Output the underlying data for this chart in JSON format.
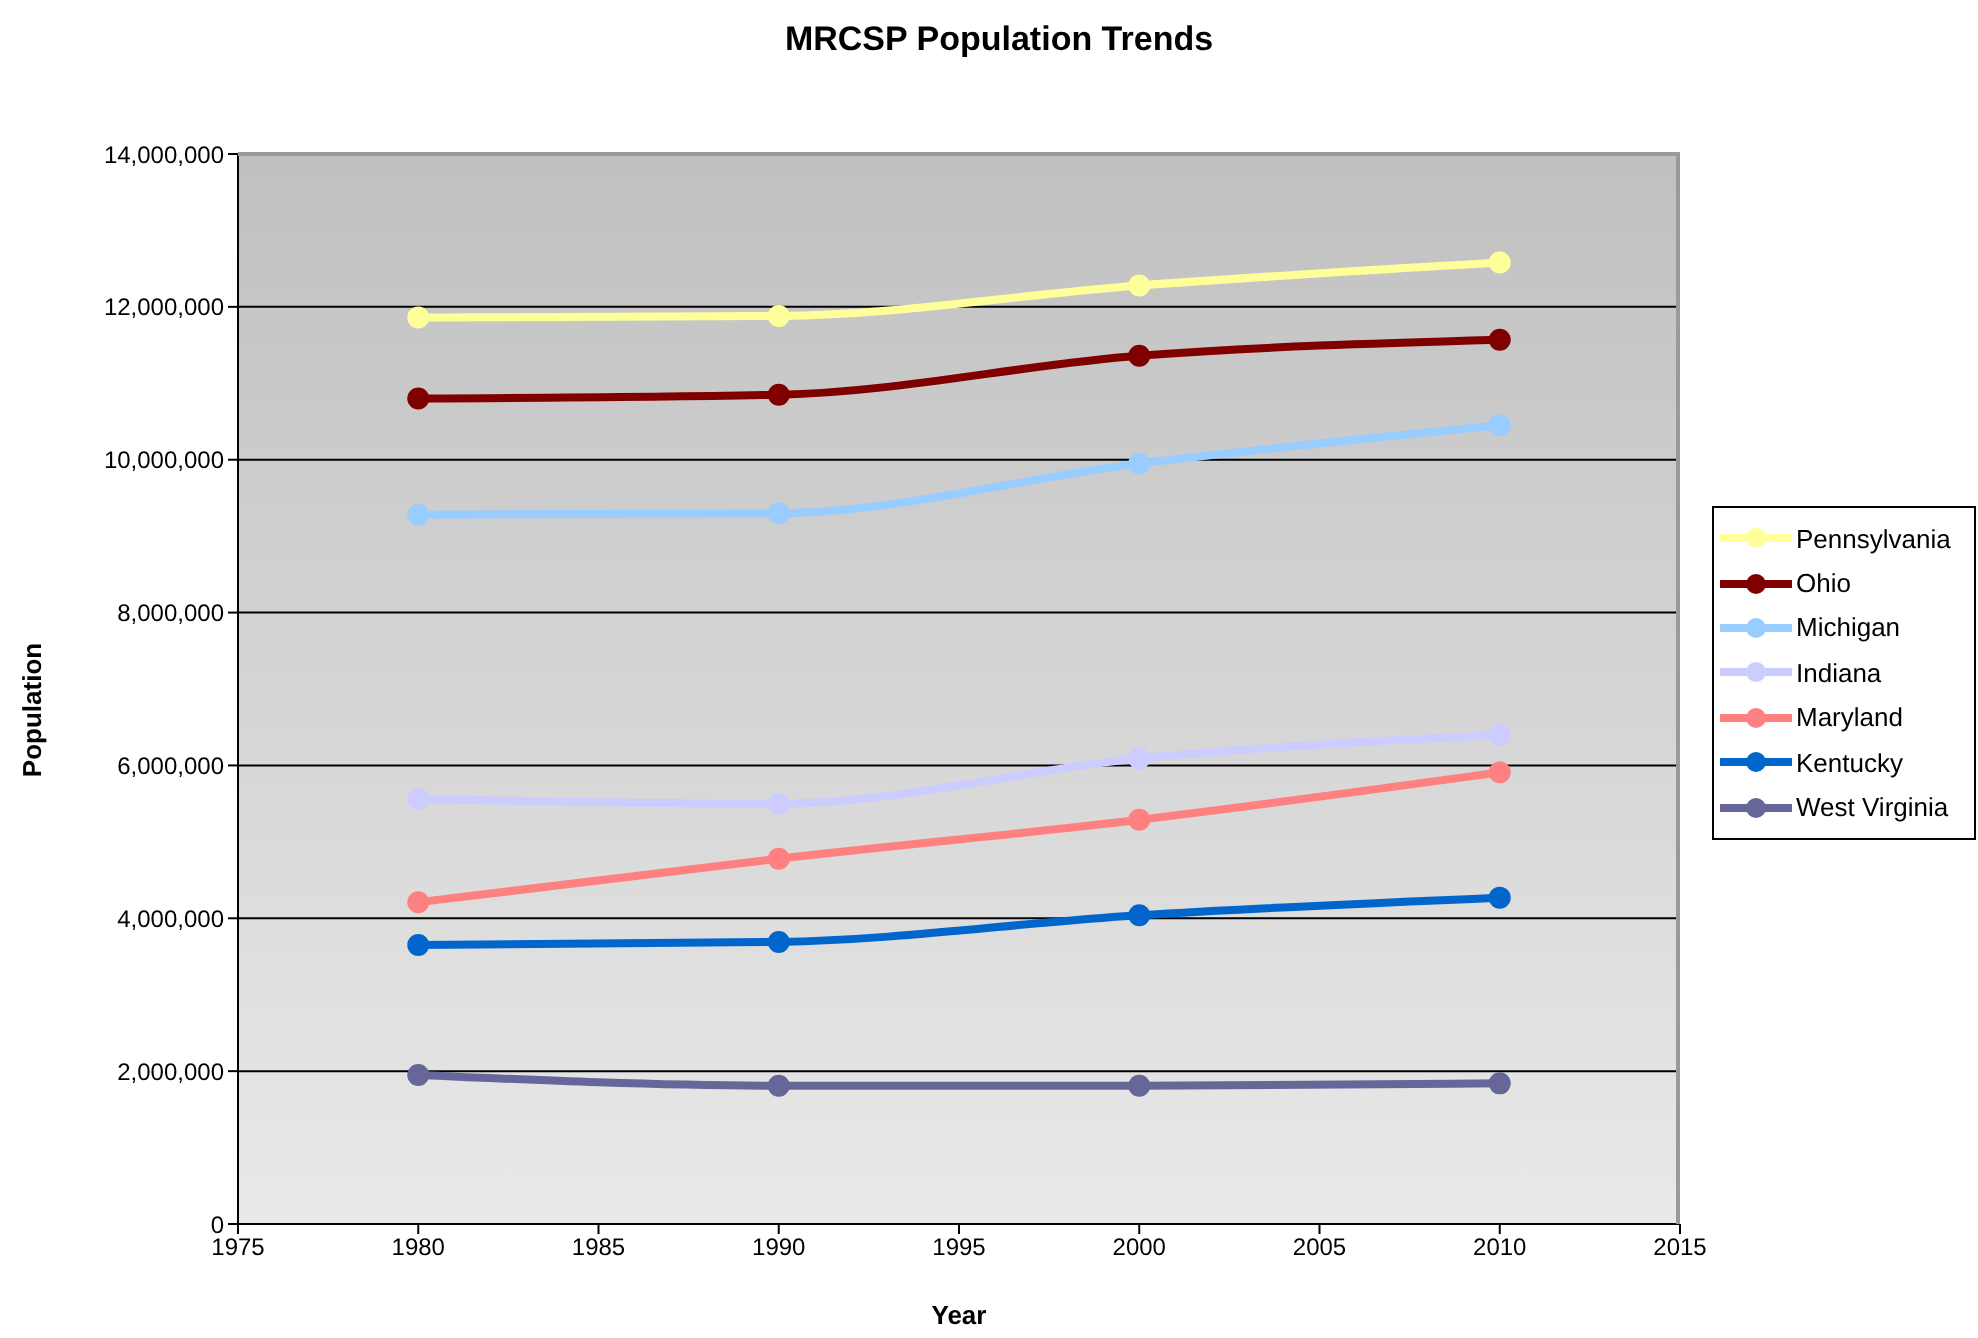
{
  "chart_data": {
    "type": "line",
    "title": "MRCSP Population Trends",
    "xlabel": "Year",
    "ylabel": "Population",
    "x": [
      1980,
      1990,
      2000,
      2010
    ],
    "series": [
      {
        "name": "Pennsylvania",
        "color": "#ffff99",
        "values": [
          11860000,
          11880000,
          12280000,
          12580000
        ]
      },
      {
        "name": "Ohio",
        "color": "#800000",
        "values": [
          10800000,
          10850000,
          11360000,
          11570000
        ]
      },
      {
        "name": "Michigan",
        "color": "#99ccff",
        "values": [
          9280000,
          9300000,
          9950000,
          10450000
        ]
      },
      {
        "name": "Indiana",
        "color": "#ccccff",
        "values": [
          5560000,
          5500000,
          6090000,
          6400000
        ]
      },
      {
        "name": "Maryland",
        "color": "#ff8080",
        "values": [
          4210000,
          4780000,
          5290000,
          5910000
        ]
      },
      {
        "name": "Kentucky",
        "color": "#0066cc",
        "values": [
          3650000,
          3690000,
          4040000,
          4270000
        ]
      },
      {
        "name": "West Virginia",
        "color": "#666699",
        "values": [
          1950000,
          1810000,
          1810000,
          1840000
        ]
      }
    ],
    "xlim": [
      1975,
      2015
    ],
    "xticks": [
      1975,
      1980,
      1985,
      1990,
      1995,
      2000,
      2005,
      2010,
      2015
    ],
    "ylim": [
      0,
      14000000
    ],
    "yticks": [
      0,
      {
        "value": 2000000,
        "label": "2,000,000"
      },
      {
        "value": 4000000,
        "label": "4,000,000"
      },
      {
        "value": 6000000,
        "label": "6,000,000"
      },
      {
        "value": 8000000,
        "label": "8,000,000"
      },
      {
        "value": 10000000,
        "label": "10,000,000"
      },
      {
        "value": 12000000,
        "label": "12,000,000"
      },
      {
        "value": 14000000,
        "label": "14,000,000"
      }
    ],
    "grid": "y",
    "legend": "right",
    "marker": "circle",
    "line_style": "solid"
  }
}
